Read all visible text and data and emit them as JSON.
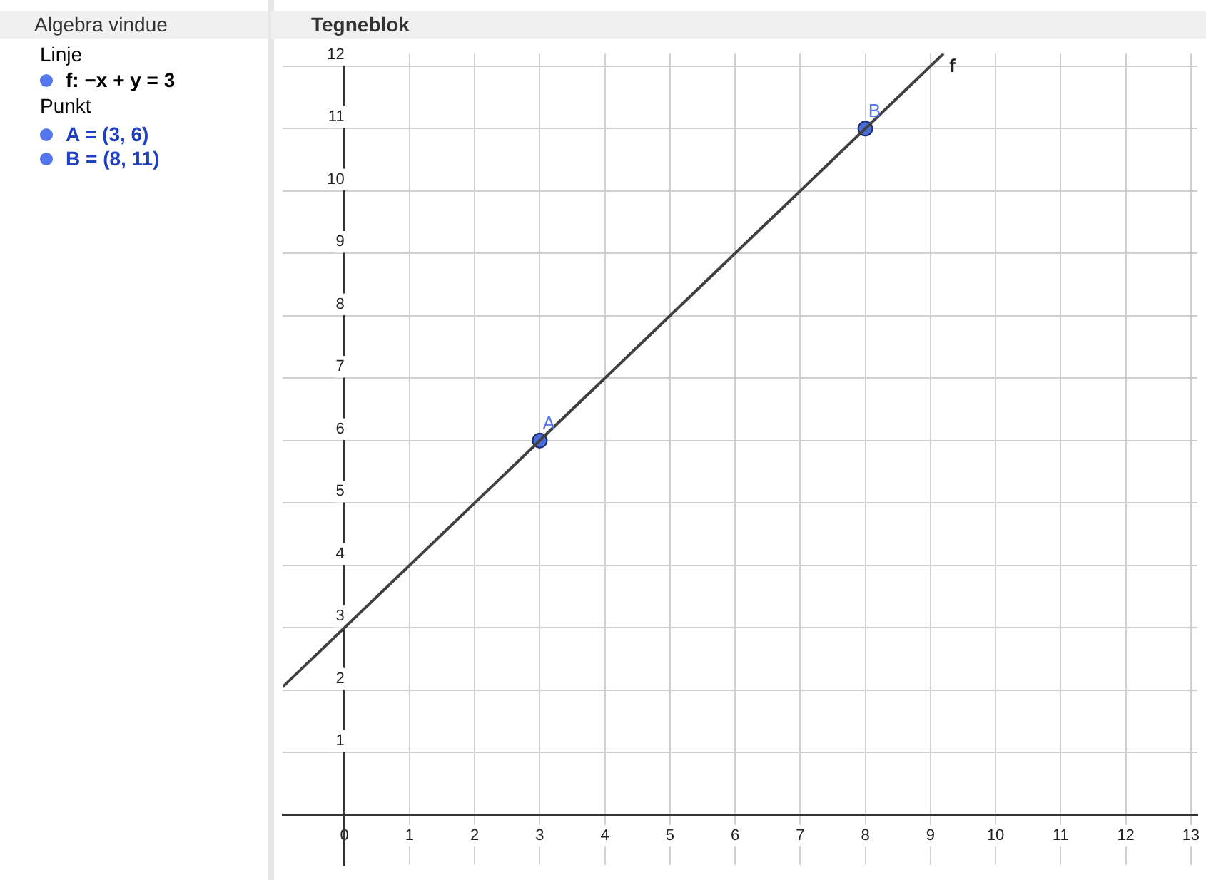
{
  "chart_data": {
    "type": "line",
    "title": "Tegneblok",
    "annotations": [
      "Algebra vindue",
      "Linje",
      "f: −x + y = 3",
      "Punkt",
      "A = (3, 6)",
      "B = (8, 11)"
    ],
    "series": [
      {
        "name": "f",
        "type": "line",
        "color": "#404040",
        "x": [
          -0.95,
          9.2
        ],
        "values": [
          2.05,
          12.2
        ],
        "marker": "none"
      },
      {
        "name": "A",
        "type": "scatter",
        "color": "#4a6cd4",
        "x": [
          3
        ],
        "values": [
          6
        ],
        "marker": "circle"
      },
      {
        "name": "B",
        "type": "scatter",
        "color": "#4a6cd4",
        "x": [
          8
        ],
        "values": [
          11
        ],
        "marker": "circle"
      }
    ],
    "xlim": [
      -0.95,
      13.1
    ],
    "ylim": [
      -0.8,
      12.2
    ],
    "xticks": [
      0,
      1,
      2,
      3,
      4,
      5,
      6,
      7,
      8,
      9,
      10,
      11,
      12,
      13
    ],
    "yticks": [
      1,
      2,
      3,
      4,
      5,
      6,
      7,
      8,
      9,
      10,
      11,
      12
    ],
    "grid": true,
    "legend": false
  }
}
